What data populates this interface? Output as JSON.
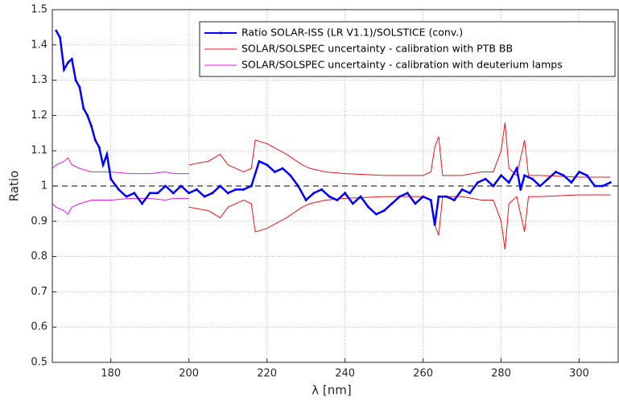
{
  "chart_data": {
    "type": "line",
    "xlabel": "λ [nm]",
    "ylabel": "Ratio",
    "xlim": [
      165,
      310
    ],
    "ylim": [
      0.5,
      1.5
    ],
    "xticks": [
      180,
      200,
      220,
      240,
      260,
      280,
      300
    ],
    "yticks": [
      0.5,
      0.6,
      0.7,
      0.8,
      0.9,
      1,
      1.1,
      1.2,
      1.3,
      1.4,
      1.5
    ],
    "grid": true,
    "legend": "upper right",
    "reference_line": 1,
    "series": [
      {
        "name": "Ratio SOLAR-ISS (LR V1.1)/SOLSTICE (conv.)",
        "color": "#0000ff",
        "marker": true,
        "x": [
          166,
          167,
          168,
          169,
          170,
          171,
          172,
          173,
          174,
          175,
          176,
          177,
          178,
          179,
          180,
          182,
          184,
          186,
          188,
          190,
          192,
          194,
          196,
          198,
          200,
          202,
          204,
          206,
          208,
          210,
          212,
          214,
          216,
          218,
          220,
          222,
          224,
          226,
          228,
          230,
          232,
          234,
          236,
          238,
          240,
          242,
          244,
          246,
          248,
          250,
          252,
          254,
          256,
          258,
          260,
          262,
          263,
          264,
          266,
          268,
          270,
          272,
          274,
          276,
          278,
          280,
          282,
          284,
          285,
          286,
          288,
          290,
          292,
          294,
          296,
          298,
          300,
          302,
          304,
          306,
          308
        ],
        "values": [
          1.44,
          1.42,
          1.33,
          1.35,
          1.36,
          1.3,
          1.28,
          1.22,
          1.2,
          1.17,
          1.13,
          1.11,
          1.06,
          1.09,
          1.02,
          0.99,
          0.97,
          0.98,
          0.95,
          0.98,
          0.98,
          1,
          0.98,
          1,
          0.98,
          0.99,
          0.97,
          0.98,
          1,
          0.98,
          0.99,
          0.99,
          1,
          1.07,
          1.06,
          1.04,
          1.05,
          1.03,
          1,
          0.96,
          0.98,
          0.99,
          0.97,
          0.96,
          0.98,
          0.95,
          0.97,
          0.94,
          0.92,
          0.93,
          0.95,
          0.97,
          0.98,
          0.95,
          0.97,
          0.96,
          0.89,
          0.97,
          0.97,
          0.96,
          0.99,
          0.98,
          1.01,
          1.02,
          1,
          1.03,
          1.01,
          1.05,
          0.99,
          1.03,
          1.02,
          1,
          1.02,
          1.04,
          1.03,
          1.01,
          1.04,
          1.03,
          1,
          1,
          1.01
        ]
      },
      {
        "name": "SOLAR/SOLSPEC uncertainty - calibration with PTB BB",
        "color": "#e8151b",
        "x": [
          200,
          205,
          208,
          210,
          214,
          216,
          217,
          220,
          225,
          229,
          231,
          235,
          240,
          250,
          255,
          260,
          262,
          263,
          264,
          265,
          270,
          275,
          278,
          280,
          281,
          282,
          284,
          286,
          287,
          290,
          300,
          308
        ],
        "values": [
          1.06,
          1.07,
          1.09,
          1.06,
          1.04,
          1.05,
          1.13,
          1.12,
          1.09,
          1.06,
          1.05,
          1.04,
          1.035,
          1.03,
          1.03,
          1.03,
          1.04,
          1.11,
          1.14,
          1.03,
          1.03,
          1.04,
          1.04,
          1.1,
          1.18,
          1.05,
          1.03,
          1.13,
          1.03,
          1.03,
          1.025,
          1.025
        ]
      },
      {
        "color": "#e8151b",
        "x": [
          200,
          205,
          208,
          210,
          214,
          216,
          217,
          220,
          225,
          229,
          231,
          235,
          240,
          250,
          255,
          260,
          262,
          263,
          264,
          265,
          270,
          275,
          278,
          280,
          281,
          282,
          284,
          286,
          287,
          290,
          300,
          308
        ],
        "values": [
          0.94,
          0.93,
          0.91,
          0.94,
          0.96,
          0.95,
          0.87,
          0.88,
          0.91,
          0.94,
          0.95,
          0.96,
          0.965,
          0.97,
          0.97,
          0.97,
          0.96,
          0.89,
          0.86,
          0.97,
          0.97,
          0.96,
          0.96,
          0.9,
          0.82,
          0.95,
          0.97,
          0.87,
          0.97,
          0.97,
          0.975,
          0.975
        ]
      },
      {
        "name": "SOLAR/SOLSPEC uncertainty - calibration with deuterium lamps",
        "color": "#e619e6",
        "x": [
          165,
          166,
          168,
          169,
          170,
          172,
          175,
          178,
          180,
          185,
          190,
          194,
          196,
          200
        ],
        "values": [
          1.05,
          1.06,
          1.07,
          1.08,
          1.06,
          1.05,
          1.04,
          1.04,
          1.04,
          1.035,
          1.035,
          1.04,
          1.035,
          1.035
        ]
      },
      {
        "color": "#e619e6",
        "x": [
          165,
          166,
          168,
          169,
          170,
          172,
          175,
          178,
          180,
          185,
          190,
          194,
          196,
          200
        ],
        "values": [
          0.95,
          0.94,
          0.93,
          0.92,
          0.94,
          0.95,
          0.96,
          0.96,
          0.96,
          0.965,
          0.965,
          0.96,
          0.965,
          0.965
        ]
      }
    ]
  }
}
